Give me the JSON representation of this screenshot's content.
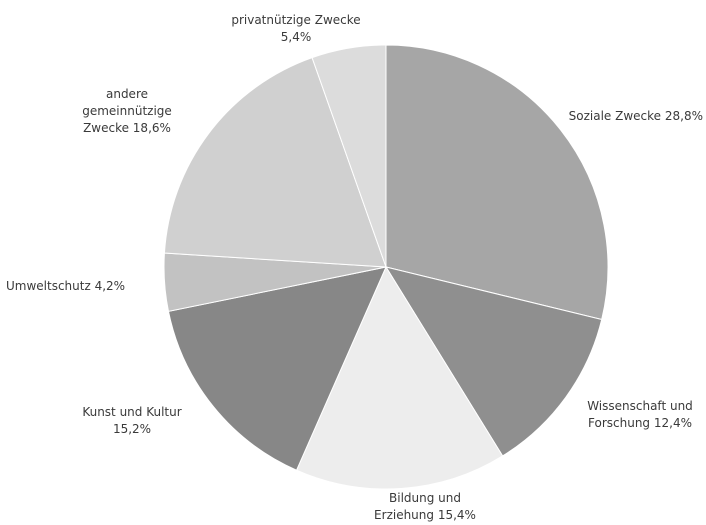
{
  "chart_data": {
    "type": "pie",
    "title": "",
    "legend": "none",
    "slices": [
      {
        "label_lines": [
          "Soziale Zwecke 28,8%"
        ],
        "label": "Soziale Zwecke",
        "value": 28.8,
        "value_label": "28,8%",
        "color": "#a6a6a6"
      },
      {
        "label_lines": [
          "Wissenschaft und",
          "Forschung 12,4%"
        ],
        "label": "Wissenschaft und Forschung",
        "value": 12.4,
        "value_label": "12,4%",
        "color": "#8f8f8f"
      },
      {
        "label_lines": [
          "Bildung und",
          "Erziehung 15,4%"
        ],
        "label": "Bildung und Erziehung",
        "value": 15.4,
        "value_label": "15,4%",
        "color": "#ededed"
      },
      {
        "label_lines": [
          "Kunst und Kultur",
          "15,2%"
        ],
        "label": "Kunst und Kultur",
        "value": 15.2,
        "value_label": "15,2%",
        "color": "#878787"
      },
      {
        "label_lines": [
          "Umweltschutz 4,2%"
        ],
        "label": "Umweltschutz",
        "value": 4.2,
        "value_label": "4,2%",
        "color": "#c2c2c2"
      },
      {
        "label_lines": [
          "andere",
          "gemeinnützige",
          "Zwecke 18,6%"
        ],
        "label": "andere gemeinnützige Zwecke",
        "value": 18.6,
        "value_label": "18,6%",
        "color": "#d0d0d0"
      },
      {
        "label_lines": [
          "privatnützige Zwecke",
          "5,4%"
        ],
        "label": "privatnützige Zwecke",
        "value": 5.4,
        "value_label": "5,4%",
        "color": "#dcdcdc"
      }
    ]
  }
}
